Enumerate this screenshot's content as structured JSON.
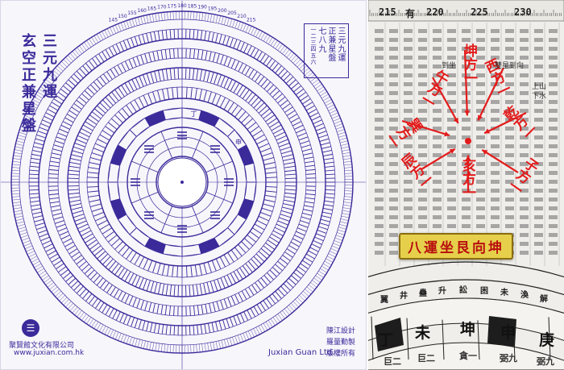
{
  "left_chart": {
    "title_col1": "三元九運",
    "title_col2": "玄空正兼星盤",
    "legend_lines": [
      "三元九運",
      "正兼星盤",
      "七八九",
      "一二三四五六"
    ],
    "footer_logo": "聚賢館文化有限公司",
    "footer_url": "www.juxian.com.hk",
    "footer_en": "Juxian Guan Ltd.",
    "footer_credits": [
      "陳江設計",
      "羅量勤製",
      "版權所有"
    ],
    "outer_degree_labels": [
      "145",
      "150",
      "155",
      "160",
      "165",
      "170",
      "175",
      "180",
      "185",
      "190",
      "195",
      "200",
      "205",
      "210",
      "215"
    ],
    "inner_mountains": [
      "丙",
      "午",
      "丁",
      "未",
      "坤",
      "申"
    ],
    "colors": {
      "ink": "#3a2a9a",
      "fill": "#4a3aa8",
      "paper": "#f7f6fb"
    }
  },
  "right_closeup": {
    "degree_labels": [
      "215",
      "220",
      "225",
      "230"
    ],
    "degree_marks": [
      "有"
    ],
    "arrow_labels": [
      "坤方一",
      "西方一",
      "乾方一",
      "午方一",
      "巽方一",
      "辰方一",
      "亥方一",
      "子方一"
    ],
    "banner": "八運坐艮向坤",
    "bottom_mountains": [
      "丁",
      "未",
      "坤",
      "申",
      "庚"
    ],
    "bottom_sub": [
      "巨二",
      "巨二",
      "貪一",
      "弼九",
      "弼九"
    ],
    "hexagrams": [
      "翼",
      "井",
      "蠱",
      "升",
      "訟",
      "困",
      "未",
      "渙",
      "解"
    ],
    "side_text": [
      "上山",
      "下水",
      "雙星到向",
      "到坐"
    ],
    "colors": {
      "red": "#e31b1b",
      "banner": "#e6d04b",
      "ink": "#1a1a1a"
    }
  }
}
